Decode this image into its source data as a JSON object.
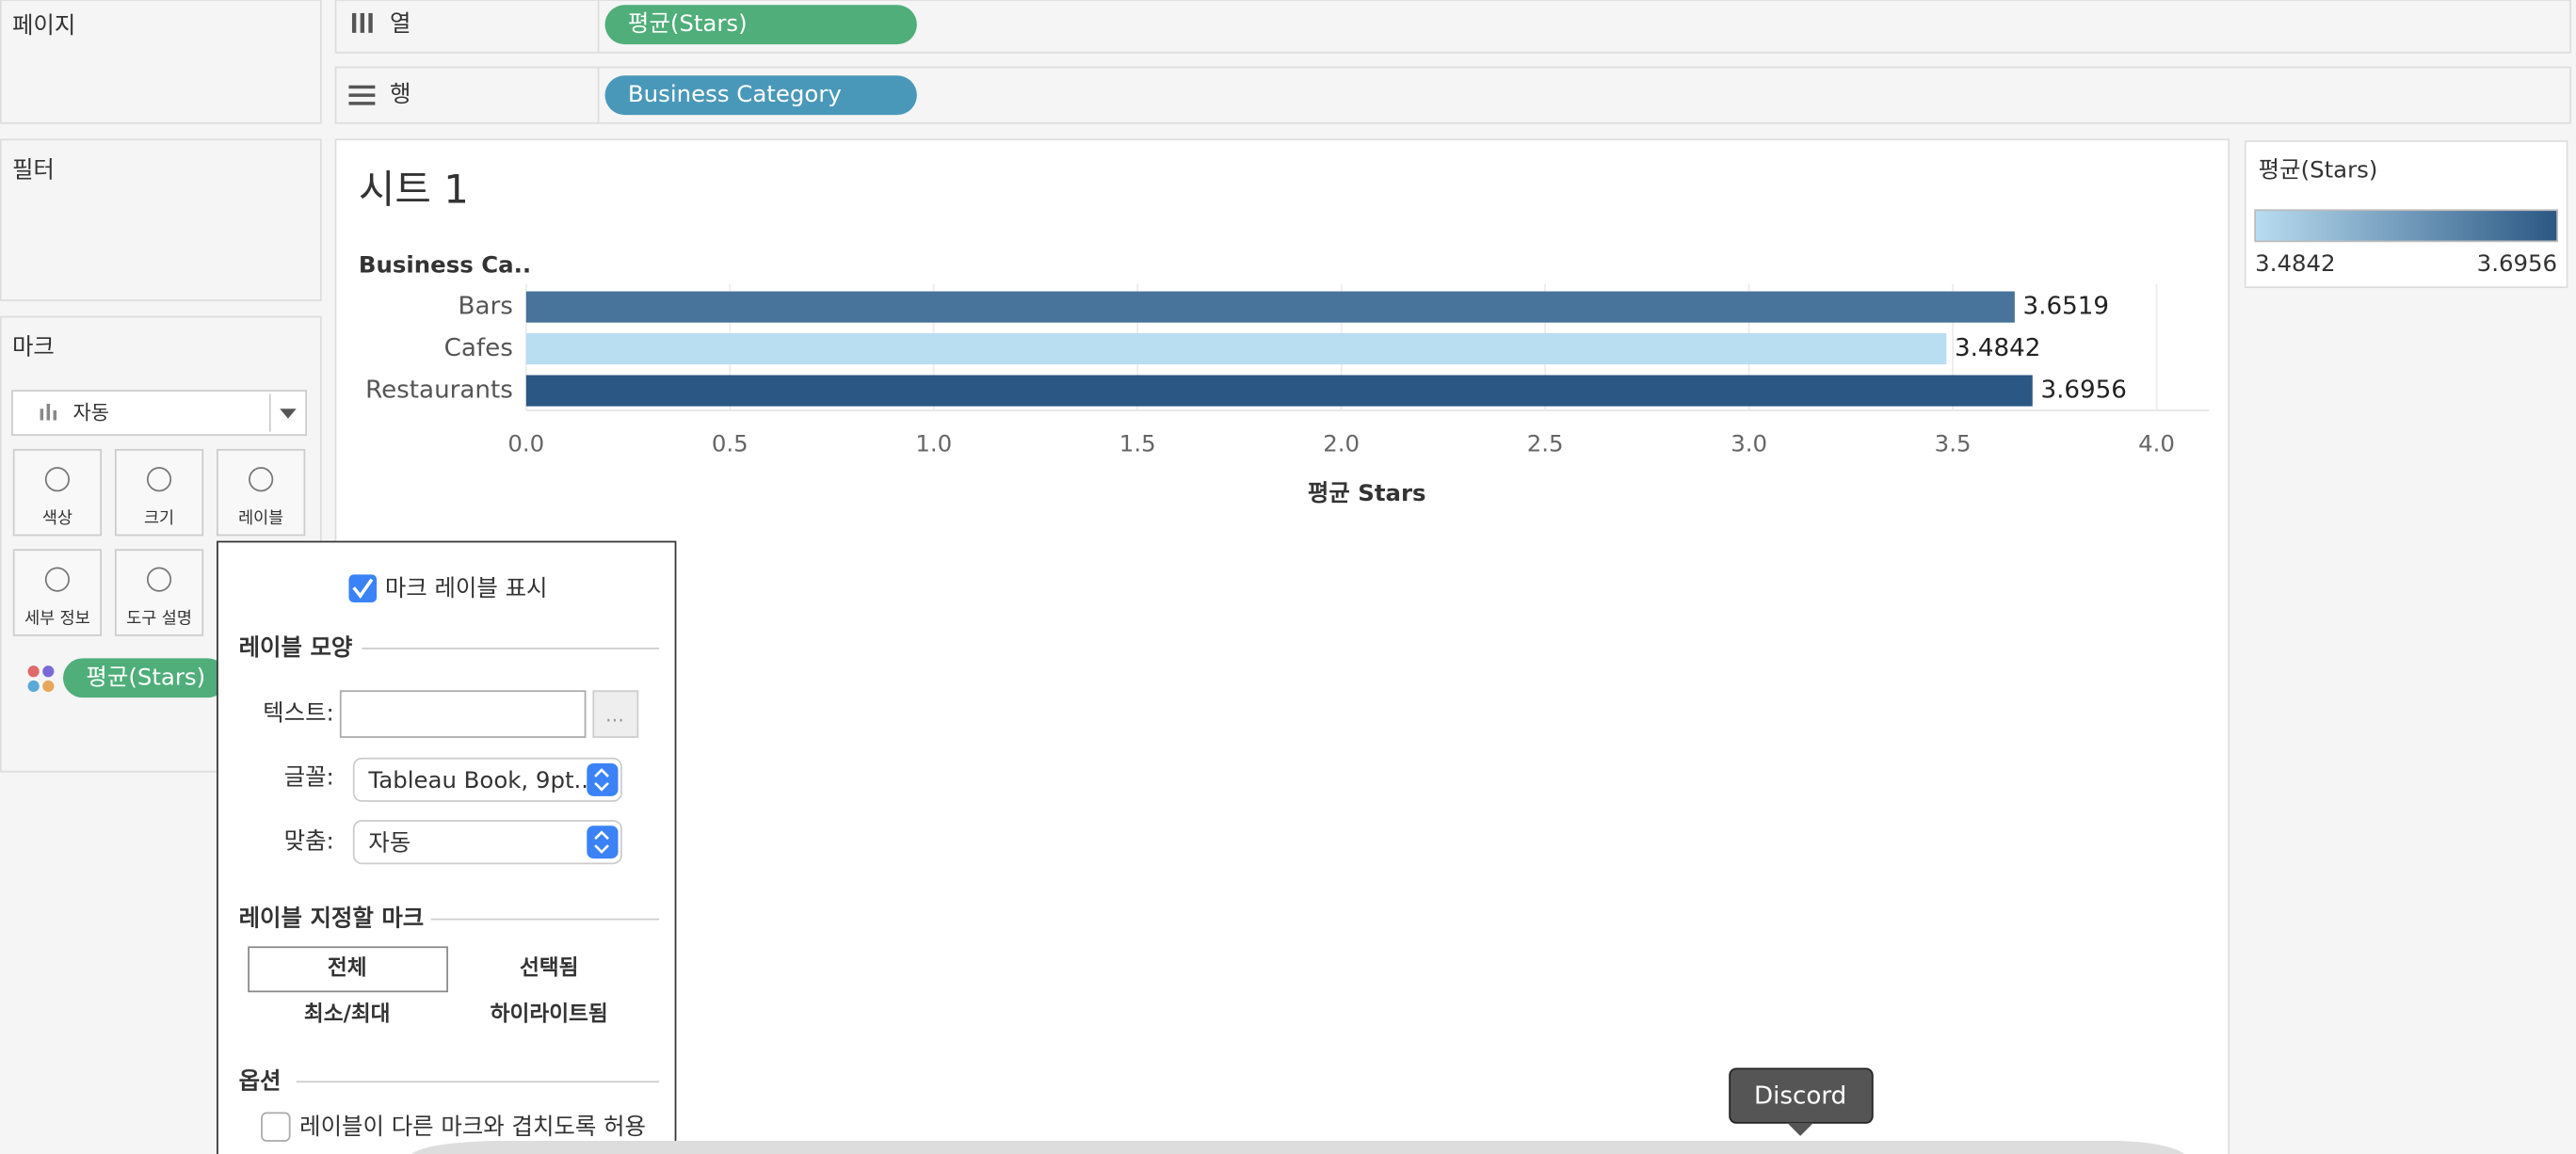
{
  "ui": {
    "pages_label": "페이지",
    "filters_label": "필터",
    "marks_label": "마크",
    "mark_type": "자동",
    "mark_cards": [
      "색상",
      "크기",
      "레이블",
      "세부 정보",
      "도구 설명"
    ],
    "mark_pill": "평균(Stars)",
    "columns_label": "열",
    "columns_pill": "평균(Stars)",
    "rows_label": "행",
    "rows_pill": "Business Category",
    "sheet_title": "시트 1",
    "label_popup": {
      "show_labels": "마크 레이블 표시",
      "appearance": "레이블 모양",
      "text_field": "텍스트:",
      "more_button": "...",
      "font_field": "글꼴:",
      "font_value": "Tableau Book, 9pt..",
      "align_field": "맞춤:",
      "align_value": "자동",
      "marks_to_label": "레이블 지정할 마크",
      "mark_options": [
        "전체",
        "선택됨",
        "최소/최대",
        "하이라이트됨"
      ],
      "options": "옵션",
      "allow_overlap": "레이블이 다른 마크와 겹치도록 허용"
    },
    "tooltip": "Discord"
  },
  "chart_data": {
    "type": "bar",
    "orientation": "horizontal",
    "category_header": "Business Ca..",
    "categories": [
      "Bars",
      "Cafes",
      "Restaurants"
    ],
    "values": [
      3.6519,
      3.4842,
      3.6956
    ],
    "xlim": [
      0,
      4
    ],
    "xticks": [
      {
        "value": 0,
        "label": "0.0"
      },
      0.5,
      {
        "value": 1,
        "label": "1.0"
      },
      1.5,
      {
        "value": 2,
        "label": "2.0"
      },
      2.5,
      {
        "value": 3,
        "label": "3.0"
      },
      3.5,
      {
        "value": 4,
        "label": "4.0"
      }
    ],
    "xlabel": "평균 Stars",
    "grid": true,
    "show_value_labels": true,
    "legend": {
      "title": "평균(Stars)",
      "range": [
        3.4842,
        3.6956
      ],
      "colors": [
        "#b9ddf1",
        "#2a5783"
      ]
    }
  }
}
